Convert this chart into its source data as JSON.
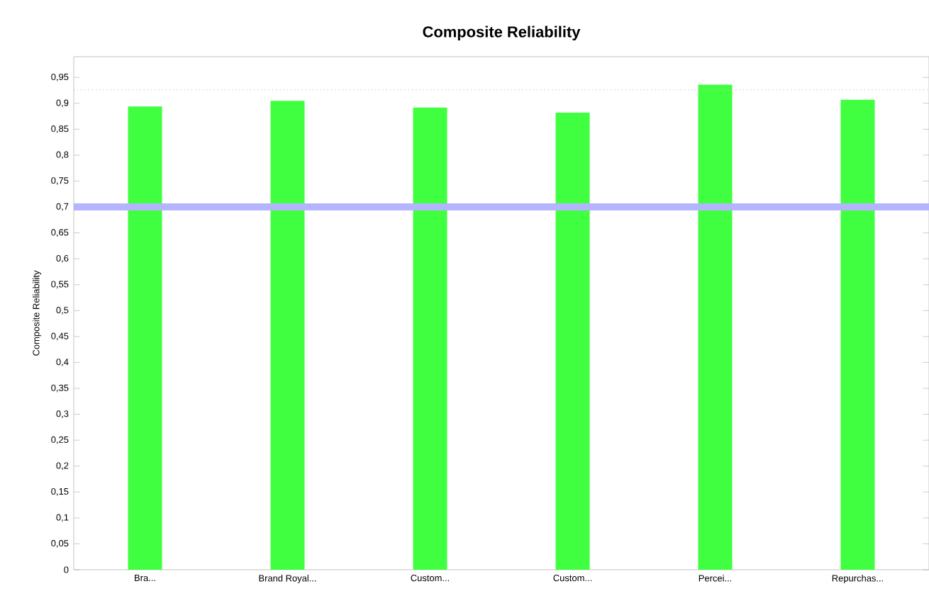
{
  "chart_data": {
    "type": "bar",
    "title": "Composite Reliability",
    "ylabel": "Composite Reliability",
    "categories": [
      "Bra...",
      "Brand Royal...",
      "Custom...",
      "Custom...",
      "Percei...",
      "Repurchas..."
    ],
    "values": [
      0.894,
      0.905,
      0.892,
      0.882,
      0.936,
      0.907
    ],
    "color": "#40ff40",
    "ylim": [
      0,
      0.99
    ],
    "yticks": [
      {
        "value": 0,
        "label": "0"
      },
      {
        "value": 0.05,
        "label": "0,05"
      },
      {
        "value": 0.1,
        "label": "0,1"
      },
      {
        "value": 0.15,
        "label": "0,15"
      },
      {
        "value": 0.2,
        "label": "0,2"
      },
      {
        "value": 0.25,
        "label": "0,25"
      },
      {
        "value": 0.3,
        "label": "0,3"
      },
      {
        "value": 0.35,
        "label": "0,35"
      },
      {
        "value": 0.4,
        "label": "0,4"
      },
      {
        "value": 0.45,
        "label": "0,45"
      },
      {
        "value": 0.5,
        "label": "0,5"
      },
      {
        "value": 0.55,
        "label": "0,55"
      },
      {
        "value": 0.6,
        "label": "0,6"
      },
      {
        "value": 0.65,
        "label": "0,65"
      },
      {
        "value": 0.7,
        "label": "0,7"
      },
      {
        "value": 0.75,
        "label": "0,75"
      },
      {
        "value": 0.8,
        "label": "0,8"
      },
      {
        "value": 0.85,
        "label": "0,85"
      },
      {
        "value": 0.9,
        "label": "0,9"
      },
      {
        "value": 0.95,
        "label": "0,95"
      }
    ],
    "ref_lines": [
      {
        "axis": "y",
        "value": 0.7,
        "color": "#b4b4ff",
        "line_style": "solid"
      },
      {
        "axis": "y",
        "value": 0.926,
        "color": "#f0b4b4",
        "line_style": "dotted"
      }
    ]
  }
}
